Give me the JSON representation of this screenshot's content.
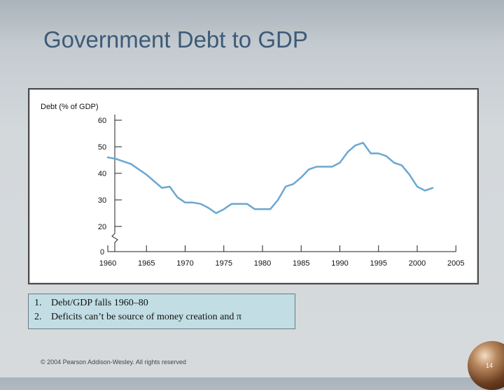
{
  "slide": {
    "title": "Government Debt to GDP",
    "footer": "© 2004 Pearson Addison-Wesley. All rights reserved",
    "page_number": "14"
  },
  "notes": [
    {
      "number": "1.",
      "text": "Debt/GDP falls 1960–80"
    },
    {
      "number": "2.",
      "text": "Deficits can’t be source of money creation and π"
    }
  ],
  "chart_data": {
    "type": "line",
    "ylabel": "Debt (% of GDP)",
    "xlabel": "",
    "ylim": [
      0,
      60
    ],
    "xlim": [
      1960,
      2005
    ],
    "y_ticks": [
      0,
      20,
      30,
      40,
      50,
      60
    ],
    "y_axis_break": true,
    "x_ticks": [
      1960,
      1965,
      1970,
      1975,
      1980,
      1985,
      1990,
      1995,
      2000,
      2005
    ],
    "grid": false,
    "color": "#6aa7d0",
    "series": [
      {
        "x": [
          1960,
          1961,
          1962,
          1963,
          1964,
          1965,
          1966,
          1967,
          1968,
          1969,
          1970,
          1971,
          1972,
          1973,
          1974,
          1975,
          1976,
          1977,
          1978,
          1979,
          1980,
          1981,
          1982,
          1983,
          1984,
          1985,
          1986,
          1987,
          1988,
          1989,
          1990,
          1991,
          1992,
          1993,
          1994,
          1995,
          1996,
          1997,
          1998,
          1999,
          2000,
          2001,
          2002
        ],
        "values": [
          46,
          45.5,
          44.5,
          43.5,
          41.5,
          39.5,
          37,
          34.5,
          35,
          31,
          29,
          29,
          28.5,
          27,
          25,
          26.5,
          28.5,
          28.5,
          28.5,
          26.5,
          26.5,
          26.5,
          30,
          35,
          36,
          38.5,
          41.5,
          42.5,
          42.5,
          42.5,
          44,
          48,
          50.5,
          51.5,
          47.5,
          47.5,
          46.5,
          44,
          43,
          39.5,
          35,
          33.5,
          34.5
        ]
      }
    ]
  }
}
